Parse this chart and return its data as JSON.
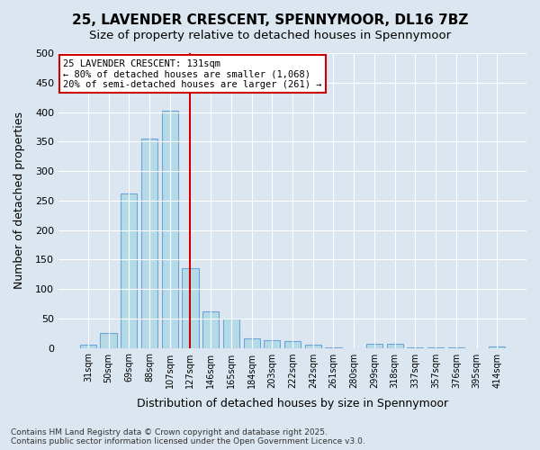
{
  "title_line1": "25, LAVENDER CRESCENT, SPENNYMOOR, DL16 7BZ",
  "title_line2": "Size of property relative to detached houses in Spennymoor",
  "xlabel": "Distribution of detached houses by size in Spennymoor",
  "ylabel": "Number of detached properties",
  "categories": [
    "31sqm",
    "50sqm",
    "69sqm",
    "88sqm",
    "107sqm",
    "127sqm",
    "146sqm",
    "165sqm",
    "184sqm",
    "203sqm",
    "222sqm",
    "242sqm",
    "261sqm",
    "280sqm",
    "299sqm",
    "318sqm",
    "337sqm",
    "357sqm",
    "376sqm",
    "395sqm",
    "414sqm"
  ],
  "values": [
    5,
    25,
    262,
    355,
    403,
    135,
    62,
    50,
    16,
    13,
    11,
    5,
    1,
    0,
    7,
    7,
    1,
    1,
    1,
    0,
    2
  ],
  "bar_color": "#add8e6",
  "bar_edge_color": "#5b9bd5",
  "vline_x": 5,
  "vline_color": "#cc0000",
  "annotation_box_color": "#cc0000",
  "annotation_text_line1": "25 LAVENDER CRESCENT: 131sqm",
  "annotation_text_line2": "← 80% of detached houses are smaller (1,068)",
  "annotation_text_line3": "20% of semi-detached houses are larger (261) →",
  "background_color": "#dce6f1",
  "plot_bg_color": "#dce6f1",
  "ylim": [
    0,
    500
  ],
  "yticks": [
    0,
    50,
    100,
    150,
    200,
    250,
    300,
    350,
    400,
    450,
    500
  ],
  "footer_line1": "Contains HM Land Registry data © Crown copyright and database right 2025.",
  "footer_line2": "Contains public sector information licensed under the Open Government Licence v3.0."
}
